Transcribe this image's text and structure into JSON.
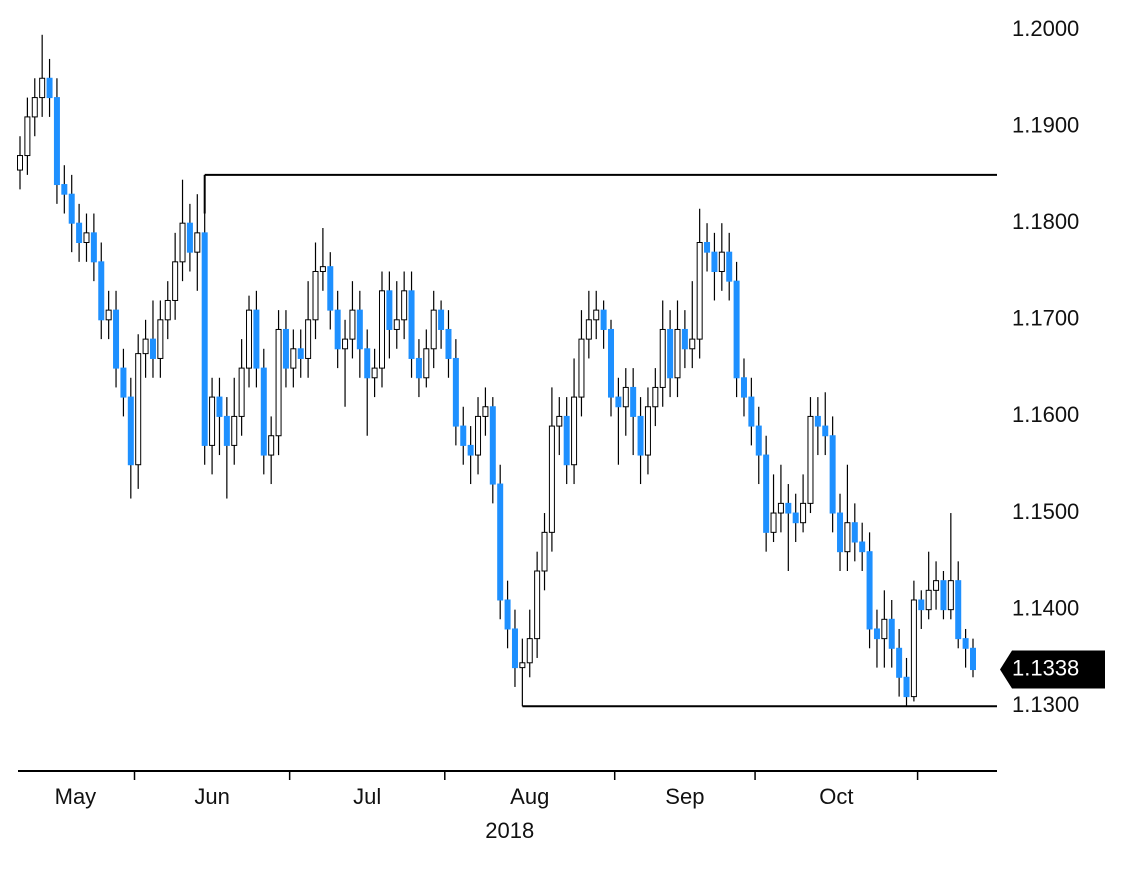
{
  "chart_data": {
    "type": "candlestick",
    "up_color": "#ffffff",
    "down_color": "#1e90ff",
    "open": [
      1.1855,
      1.187,
      1.191,
      1.193,
      1.195,
      1.193,
      1.184,
      1.183,
      1.18,
      1.178,
      1.179,
      1.176,
      1.17,
      1.171,
      1.165,
      1.162,
      1.155,
      1.1665,
      1.168,
      1.166,
      1.17,
      1.172,
      1.176,
      1.18,
      1.177,
      1.179,
      1.157,
      1.162,
      1.16,
      1.157,
      1.16,
      1.165,
      1.171,
      1.165,
      1.156,
      1.158,
      1.169,
      1.165,
      1.167,
      1.166,
      1.17,
      1.175,
      1.1755,
      1.171,
      1.167,
      1.168,
      1.171,
      1.167,
      1.164,
      1.165,
      1.173,
      1.169,
      1.17,
      1.173,
      1.166,
      1.164,
      1.167,
      1.171,
      1.169,
      1.166,
      1.159,
      1.157,
      1.156,
      1.16,
      1.161,
      1.153,
      1.141,
      1.138,
      1.134,
      1.1345,
      1.137,
      1.144,
      1.148,
      1.159,
      1.16,
      1.155,
      1.162,
      1.168,
      1.17,
      1.171,
      1.169,
      1.162,
      1.161,
      1.163,
      1.16,
      1.156,
      1.161,
      1.163,
      1.169,
      1.164,
      1.169,
      1.167,
      1.168,
      1.178,
      1.177,
      1.175,
      1.177,
      1.174,
      1.164,
      1.162,
      1.159,
      1.156,
      1.148,
      1.15,
      1.151,
      1.15,
      1.149,
      1.151,
      1.16,
      1.159,
      1.158,
      1.15,
      1.146,
      1.149,
      1.147,
      1.146,
      1.138,
      1.137,
      1.139,
      1.136,
      1.133,
      1.131,
      1.141,
      1.14,
      1.142,
      1.143,
      1.14,
      1.143,
      1.137,
      1.136
    ],
    "high": [
      1.189,
      1.193,
      1.195,
      1.1995,
      1.197,
      1.195,
      1.186,
      1.185,
      1.182,
      1.181,
      1.181,
      1.178,
      1.173,
      1.173,
      1.167,
      1.164,
      1.1685,
      1.17,
      1.172,
      1.172,
      1.174,
      1.179,
      1.1845,
      1.182,
      1.183,
      1.181,
      1.164,
      1.164,
      1.162,
      1.164,
      1.168,
      1.1725,
      1.173,
      1.167,
      1.16,
      1.171,
      1.171,
      1.169,
      1.169,
      1.174,
      1.178,
      1.1795,
      1.177,
      1.173,
      1.17,
      1.174,
      1.173,
      1.169,
      1.167,
      1.175,
      1.175,
      1.174,
      1.175,
      1.175,
      1.168,
      1.169,
      1.173,
      1.172,
      1.171,
      1.168,
      1.161,
      1.159,
      1.162,
      1.163,
      1.162,
      1.155,
      1.143,
      1.14,
      1.137,
      1.14,
      1.146,
      1.15,
      1.163,
      1.162,
      1.162,
      1.166,
      1.171,
      1.173,
      1.173,
      1.172,
      1.17,
      1.164,
      1.165,
      1.165,
      1.162,
      1.163,
      1.165,
      1.172,
      1.171,
      1.172,
      1.171,
      1.174,
      1.1815,
      1.18,
      1.179,
      1.18,
      1.179,
      1.176,
      1.166,
      1.164,
      1.161,
      1.158,
      1.154,
      1.155,
      1.153,
      1.152,
      1.154,
      1.162,
      1.162,
      1.1625,
      1.16,
      1.152,
      1.155,
      1.151,
      1.149,
      1.148,
      1.14,
      1.142,
      1.141,
      1.138,
      1.135,
      1.143,
      1.142,
      1.146,
      1.145,
      1.144,
      1.15,
      1.145,
      1.138,
      1.137
    ],
    "low": [
      1.1835,
      1.185,
      1.189,
      1.191,
      1.191,
      1.182,
      1.181,
      1.177,
      1.176,
      1.176,
      1.174,
      1.168,
      1.168,
      1.163,
      1.16,
      1.1515,
      1.1525,
      1.164,
      1.164,
      1.164,
      1.168,
      1.17,
      1.174,
      1.175,
      1.173,
      1.155,
      1.154,
      1.156,
      1.1515,
      1.155,
      1.158,
      1.163,
      1.163,
      1.154,
      1.153,
      1.156,
      1.163,
      1.163,
      1.164,
      1.164,
      1.168,
      1.173,
      1.169,
      1.165,
      1.161,
      1.166,
      1.164,
      1.158,
      1.162,
      1.163,
      1.166,
      1.167,
      1.168,
      1.164,
      1.162,
      1.163,
      1.165,
      1.167,
      1.164,
      1.157,
      1.155,
      1.153,
      1.154,
      1.158,
      1.151,
      1.139,
      1.136,
      1.132,
      1.13,
      1.133,
      1.135,
      1.142,
      1.146,
      1.156,
      1.153,
      1.153,
      1.16,
      1.166,
      1.168,
      1.167,
      1.16,
      1.155,
      1.158,
      1.156,
      1.153,
      1.154,
      1.159,
      1.161,
      1.162,
      1.162,
      1.165,
      1.165,
      1.166,
      1.175,
      1.172,
      1.173,
      1.172,
      1.162,
      1.16,
      1.157,
      1.153,
      1.146,
      1.147,
      1.148,
      1.144,
      1.147,
      1.148,
      1.15,
      1.156,
      1.156,
      1.148,
      1.144,
      1.144,
      1.145,
      1.144,
      1.136,
      1.134,
      1.134,
      1.134,
      1.131,
      1.13,
      1.1305,
      1.138,
      1.139,
      1.14,
      1.139,
      1.139,
      1.136,
      1.134,
      1.133
    ],
    "close": [
      1.187,
      1.191,
      1.193,
      1.195,
      1.193,
      1.184,
      1.183,
      1.18,
      1.178,
      1.179,
      1.176,
      1.17,
      1.171,
      1.165,
      1.162,
      1.155,
      1.1665,
      1.168,
      1.166,
      1.17,
      1.172,
      1.176,
      1.18,
      1.177,
      1.179,
      1.157,
      1.162,
      1.16,
      1.157,
      1.16,
      1.165,
      1.171,
      1.165,
      1.156,
      1.158,
      1.169,
      1.165,
      1.167,
      1.166,
      1.17,
      1.175,
      1.1755,
      1.171,
      1.167,
      1.168,
      1.171,
      1.167,
      1.164,
      1.165,
      1.173,
      1.169,
      1.17,
      1.173,
      1.166,
      1.164,
      1.167,
      1.171,
      1.169,
      1.166,
      1.159,
      1.157,
      1.156,
      1.16,
      1.161,
      1.153,
      1.141,
      1.138,
      1.134,
      1.1345,
      1.137,
      1.144,
      1.148,
      1.159,
      1.16,
      1.155,
      1.162,
      1.168,
      1.17,
      1.171,
      1.169,
      1.162,
      1.161,
      1.163,
      1.16,
      1.156,
      1.161,
      1.163,
      1.169,
      1.164,
      1.169,
      1.167,
      1.168,
      1.178,
      1.177,
      1.175,
      1.177,
      1.174,
      1.164,
      1.162,
      1.159,
      1.156,
      1.148,
      1.15,
      1.151,
      1.15,
      1.149,
      1.151,
      1.16,
      1.159,
      1.158,
      1.15,
      1.146,
      1.149,
      1.147,
      1.146,
      1.138,
      1.137,
      1.139,
      1.136,
      1.133,
      1.131,
      1.141,
      1.14,
      1.142,
      1.143,
      1.14,
      1.143,
      1.137,
      1.136,
      1.1338
    ],
    "ylim": [
      1.1233,
      1.2031
    ],
    "yticks": [
      {
        "value": 1.13,
        "label": "1.1300"
      },
      {
        "value": 1.14,
        "label": "1.1400"
      },
      {
        "value": 1.15,
        "label": "1.1500"
      },
      {
        "value": 1.16,
        "label": "1.1600"
      },
      {
        "value": 1.17,
        "label": "1.1700"
      },
      {
        "value": 1.18,
        "label": "1.1800"
      },
      {
        "value": 1.19,
        "label": "1.1900"
      },
      {
        "value": 1.2,
        "label": "1.2000"
      }
    ],
    "xticks": [
      15.5,
      36.5,
      57.5,
      80.5,
      99.5,
      121.5
    ],
    "month_labels": [
      "May",
      "Jun",
      "Jul",
      "Aug",
      "Sep",
      "Oct"
    ],
    "year_label": "2018",
    "levels": [
      {
        "value": 1.185,
        "start": 25
      },
      {
        "value": 1.13,
        "start": 68
      }
    ],
    "last_price": {
      "value": 1.1338,
      "label": "1.1338"
    }
  }
}
